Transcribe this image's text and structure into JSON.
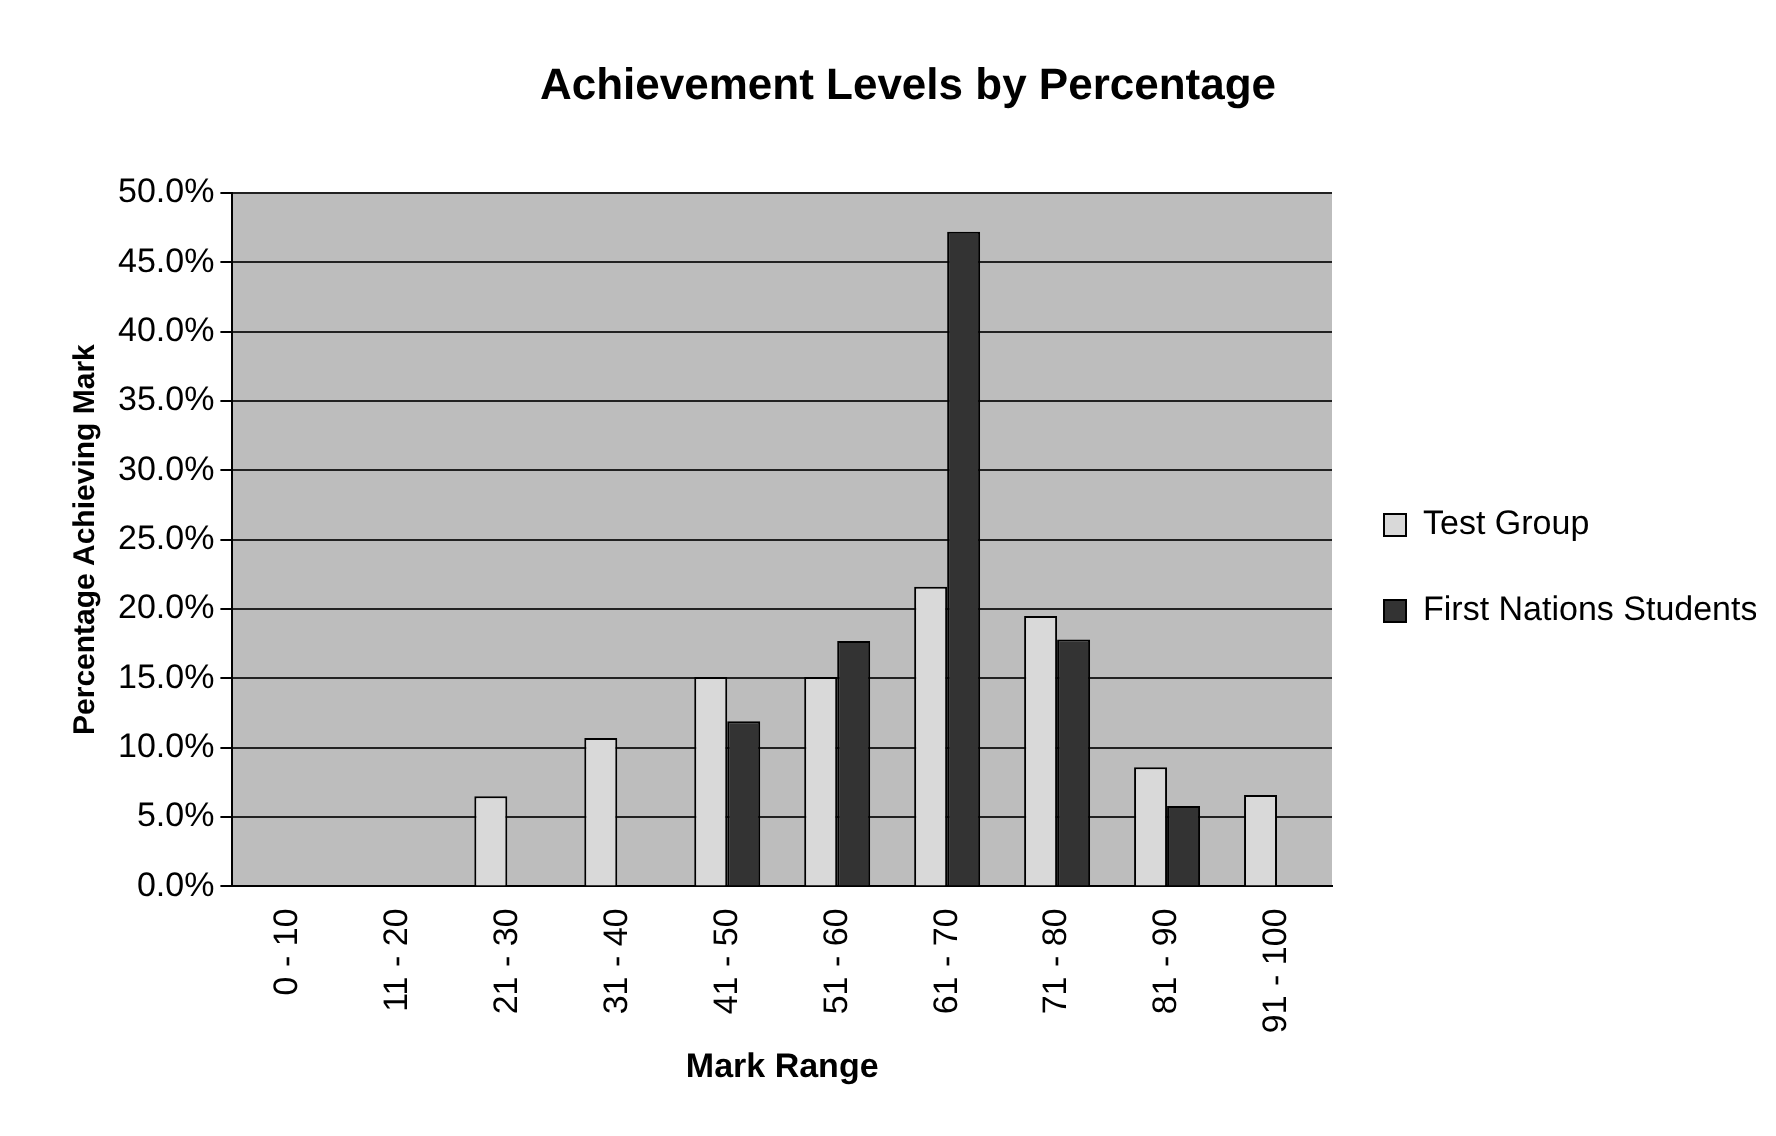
{
  "chart_data": {
    "type": "bar",
    "title": "Achievement Levels by Percentage",
    "xlabel": "Mark Range",
    "ylabel": "Percentage Achieving Mark",
    "categories": [
      "0 - 10",
      "11 - 20",
      "21 - 30",
      "31 - 40",
      "41 - 50",
      "51 - 60",
      "61 - 70",
      "71 - 80",
      "81 - 90",
      "91 - 100"
    ],
    "series": [
      {
        "name": "Test Group",
        "color": "#d9d9d9",
        "values": [
          0,
          0,
          6.5,
          10.7,
          15.1,
          15.1,
          21.6,
          19.5,
          8.6,
          6.6
        ]
      },
      {
        "name": "First Nations Students",
        "color": "#333333",
        "values": [
          0,
          0,
          0,
          0,
          11.9,
          17.7,
          47.2,
          17.8,
          5.8,
          0
        ]
      }
    ],
    "ylim": [
      0,
      50
    ],
    "yticks": [
      {
        "value": 0,
        "label": "0.0%"
      },
      {
        "value": 5,
        "label": "5.0%"
      },
      {
        "value": 10,
        "label": "10.0%"
      },
      {
        "value": 15,
        "label": "15.0%"
      },
      {
        "value": 20,
        "label": "20.0%"
      },
      {
        "value": 25,
        "label": "25.0%"
      },
      {
        "value": 30,
        "label": "30.0%"
      },
      {
        "value": 35,
        "label": "35.0%"
      },
      {
        "value": 40,
        "label": "40.0%"
      },
      {
        "value": 45,
        "label": "45.0%"
      },
      {
        "value": 50,
        "label": "50.0%"
      }
    ],
    "grid": "y",
    "legend": "right"
  }
}
